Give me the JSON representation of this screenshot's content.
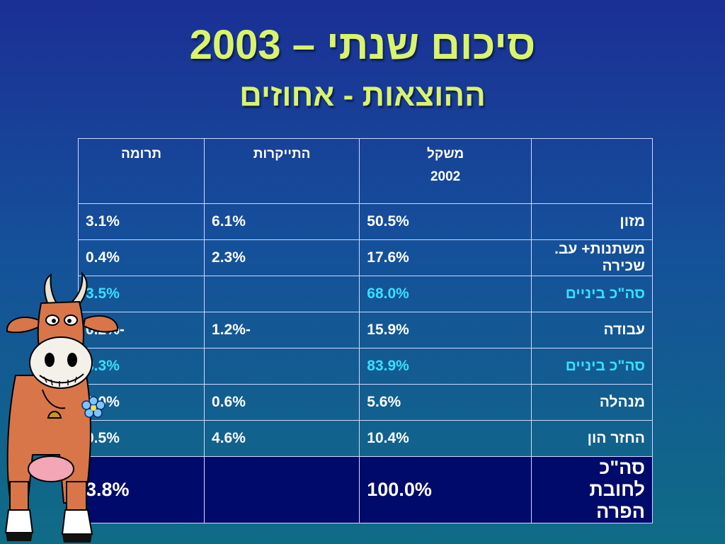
{
  "title": "סיכום שנתי – 2003",
  "subtitle": "ההוצאות - אחוזים",
  "table": {
    "headers": {
      "label": "",
      "weight_line1": "משקל",
      "weight_line2": "2002",
      "price_increase": "התייקרות",
      "contribution": "תרומה"
    },
    "rows": [
      {
        "label": "מזון",
        "weight": "50.5%",
        "increase": "6.1%",
        "contribution": "3.1%",
        "kind": "row"
      },
      {
        "label": "משתנות+ עב. שכירה",
        "weight": "17.6%",
        "increase": "2.3%",
        "contribution": "0.4%",
        "kind": "row"
      },
      {
        "label": "סה\"כ ביניים",
        "weight": "68.0%",
        "increase": "",
        "contribution": "3.5%",
        "kind": "sub"
      },
      {
        "label": "עבודה",
        "weight": "15.9%",
        "increase": "-1.2%",
        "contribution": "-0.2%",
        "kind": "row"
      },
      {
        "label": "סה\"כ ביניים",
        "weight": "83.9%",
        "increase": "",
        "contribution": "3.3%",
        "kind": "sub"
      },
      {
        "label": "מנהלה",
        "weight": "5.6%",
        "increase": "0.6%",
        "contribution": "0.0%",
        "kind": "row"
      },
      {
        "label": "החזר הון",
        "weight": "10.4%",
        "increase": "4.6%",
        "contribution": "0.5%",
        "kind": "row"
      },
      {
        "label": "סה\"כ לחובת הפרה",
        "weight": "100.0%",
        "increase": "",
        "contribution": "3.8%",
        "kind": "total"
      }
    ]
  },
  "colors": {
    "title": "#d9f46b",
    "subtotal_text": "#36e0ff",
    "total_bg": "#000a6a"
  },
  "illustration": "cow-illustration"
}
